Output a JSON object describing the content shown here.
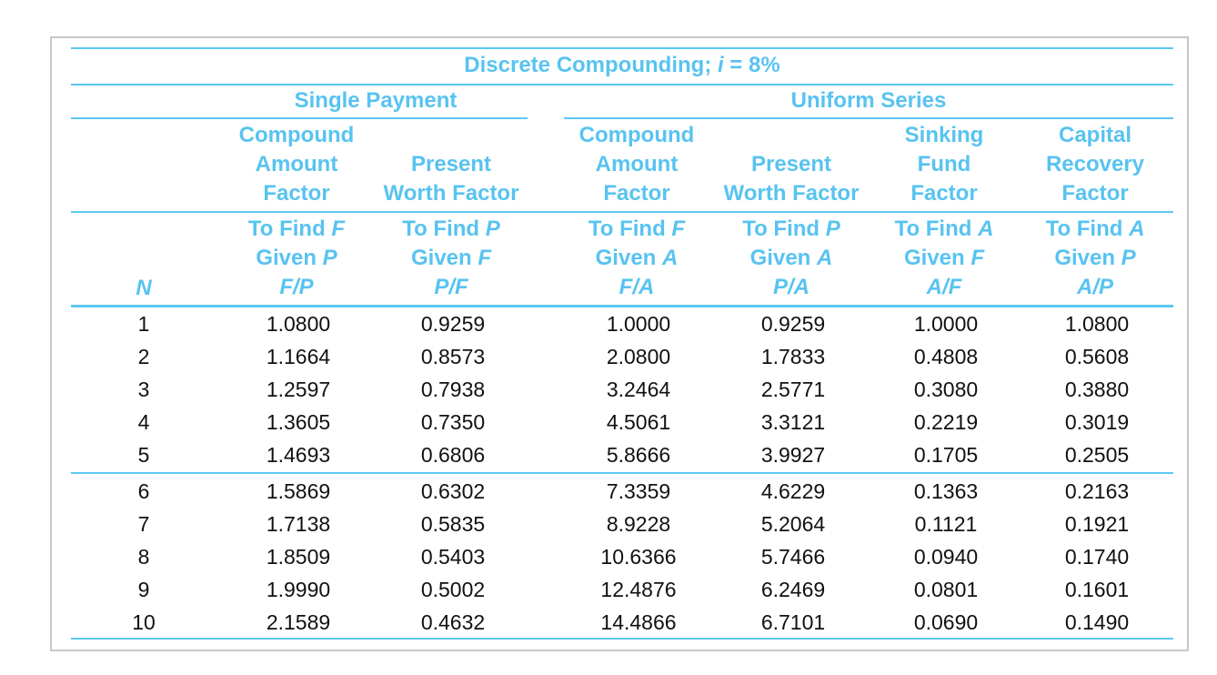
{
  "table": {
    "title_prefix": "Discrete Compounding; ",
    "title_var": "i",
    "title_suffix": " = 8%",
    "groups": {
      "single": "Single Payment",
      "uniform": "Uniform Series"
    },
    "n_label": "N",
    "columns": [
      {
        "name": [
          "Compound",
          "Amount",
          "Factor"
        ],
        "find": "F",
        "given": "P",
        "sym": [
          "F",
          "P"
        ]
      },
      {
        "name": [
          "Present",
          "Worth Factor"
        ],
        "find": "P",
        "given": "F",
        "sym": [
          "P",
          "F"
        ]
      },
      {
        "name": [
          "Compound",
          "Amount",
          "Factor"
        ],
        "find": "F",
        "given": "A",
        "sym": [
          "F",
          "A"
        ]
      },
      {
        "name": [
          "Present",
          "Worth Factor"
        ],
        "find": "P",
        "given": "A",
        "sym": [
          "P",
          "A"
        ]
      },
      {
        "name": [
          "Sinking",
          "Fund",
          "Factor"
        ],
        "find": "A",
        "given": "F",
        "sym": [
          "A",
          "F"
        ]
      },
      {
        "name": [
          "Capital",
          "Recovery",
          "Factor"
        ],
        "find": "A",
        "given": "P",
        "sym": [
          "A",
          "P"
        ]
      }
    ],
    "to_find_prefix": "To Find ",
    "given_prefix": "Given ",
    "rows": [
      [
        "1",
        "1.0800",
        "0.9259",
        "1.0000",
        "0.9259",
        "1.0000",
        "1.0800"
      ],
      [
        "2",
        "1.1664",
        "0.8573",
        "2.0800",
        "1.7833",
        "0.4808",
        "0.5608"
      ],
      [
        "3",
        "1.2597",
        "0.7938",
        "3.2464",
        "2.5771",
        "0.3080",
        "0.3880"
      ],
      [
        "4",
        "1.3605",
        "0.7350",
        "4.5061",
        "3.3121",
        "0.2219",
        "0.3019"
      ],
      [
        "5",
        "1.4693",
        "0.6806",
        "5.8666",
        "3.9927",
        "0.1705",
        "0.2505"
      ],
      [
        "6",
        "1.5869",
        "0.6302",
        "7.3359",
        "4.6229",
        "0.1363",
        "0.2163"
      ],
      [
        "7",
        "1.7138",
        "0.5835",
        "8.9228",
        "5.2064",
        "0.1121",
        "0.1921"
      ],
      [
        "8",
        "1.8509",
        "0.5403",
        "10.6366",
        "5.7466",
        "0.0940",
        "0.1740"
      ],
      [
        "9",
        "1.9990",
        "0.5002",
        "12.4876",
        "6.2469",
        "0.0801",
        "0.1601"
      ],
      [
        "10",
        "2.1589",
        "0.4632",
        "14.4866",
        "6.7101",
        "0.0690",
        "0.1490"
      ]
    ],
    "colors": {
      "accent": "#58c3f0",
      "rule": "#5bc8f0",
      "text": "#111111",
      "frame": "#c8c8c8"
    }
  }
}
